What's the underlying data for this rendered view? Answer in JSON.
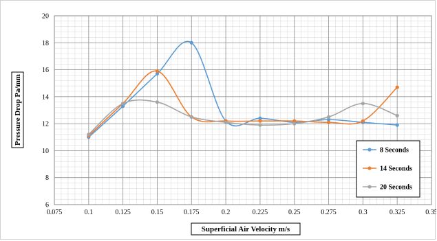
{
  "chart_data": {
    "type": "line",
    "smooth": true,
    "title": "",
    "xlabel": "Superficial Air Velocity m/s",
    "ylabel": "Pressure Drop Pa/mm",
    "xlim": [
      0.075,
      0.35
    ],
    "ylim": [
      6,
      20
    ],
    "x_ticks": [
      "0.075",
      "0.1",
      "0.125",
      "0.15",
      "0.175",
      "0.2",
      "0.225",
      "0.25",
      "0.275",
      "0.3",
      "0.325",
      "0.35"
    ],
    "y_ticks": [
      "6",
      "8",
      "10",
      "12",
      "14",
      "16",
      "18",
      "20"
    ],
    "x_tick_values": [
      0.075,
      0.1,
      0.125,
      0.15,
      0.175,
      0.2,
      0.225,
      0.25,
      0.275,
      0.3,
      0.325,
      0.35
    ],
    "y_tick_values": [
      6,
      8,
      10,
      12,
      14,
      16,
      18,
      20
    ],
    "grid": true,
    "minor_grid": true,
    "legend_position": "right",
    "x": [
      0.1,
      0.125,
      0.15,
      0.175,
      0.2,
      0.225,
      0.25,
      0.275,
      0.3,
      0.325
    ],
    "series": [
      {
        "name": "8 Seconds",
        "color": "#5b9bd5",
        "values": [
          11.0,
          13.3,
          15.7,
          18.0,
          12.2,
          12.4,
          12.1,
          12.3,
          12.1,
          11.9
        ]
      },
      {
        "name": "14 Seconds",
        "color": "#ed7d31",
        "values": [
          11.1,
          13.5,
          15.9,
          12.5,
          12.2,
          12.2,
          12.2,
          12.1,
          12.2,
          14.7
        ]
      },
      {
        "name": "20 Seconds",
        "color": "#a5a5a5",
        "values": [
          11.2,
          13.5,
          13.6,
          12.5,
          12.1,
          11.9,
          12.0,
          12.5,
          13.5,
          12.6
        ]
      }
    ]
  }
}
